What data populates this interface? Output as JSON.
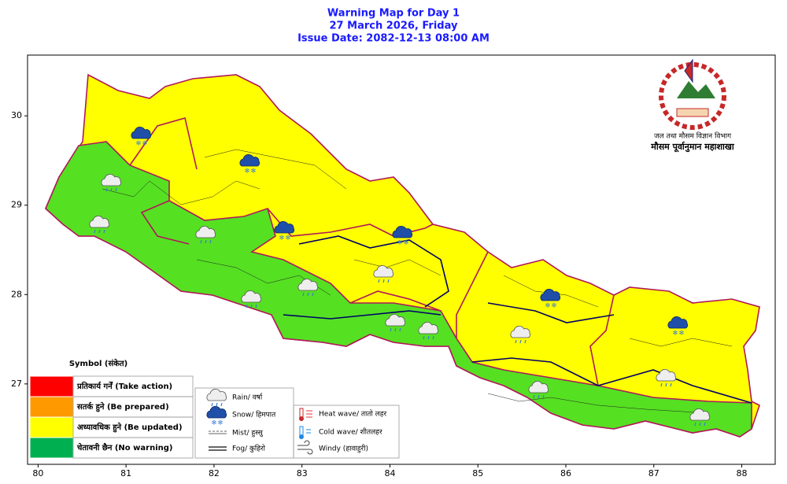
{
  "title": [
    "Warning Map for Day 1",
    "27 March 2026, Friday",
    "Issue Date: 2082-12-13 08:00 AM"
  ],
  "header": {
    "department": "जल तथा मौसम विज्ञान विभाग",
    "division": "मौसम पूर्वानुमान महाशाखा"
  },
  "axes": {
    "xlim": [
      79.88,
      88.38
    ],
    "xticks": [
      80,
      81,
      82,
      83,
      84,
      85,
      86,
      87,
      88
    ],
    "ylim": [
      26.1,
      30.68
    ],
    "yticks": [
      27,
      28,
      29,
      30
    ]
  },
  "legend": {
    "title": "Symbol (संकेत)",
    "levels": [
      {
        "label": "प्रतिकार्य गर्नें (Take action)",
        "color": "#ff0000"
      },
      {
        "label": "सतर्क हुने (Be prepared)",
        "color": "#ff9900"
      },
      {
        "label": "अध्यावधिक हुने (Be updated)",
        "color": "#ffff00"
      },
      {
        "label": "चेतावनी छैन (No warning)",
        "color": "#00b050"
      }
    ]
  },
  "symbols": [
    "Rain/ वर्षा",
    "Snow/ हिमपात",
    "Mist/ हुस्सु",
    "Fog/ कुहिरो",
    "Heat wave/ तातो लहर",
    "Cold wave/ शीतलहर",
    "Windy (हावाहुरी)"
  ]
}
